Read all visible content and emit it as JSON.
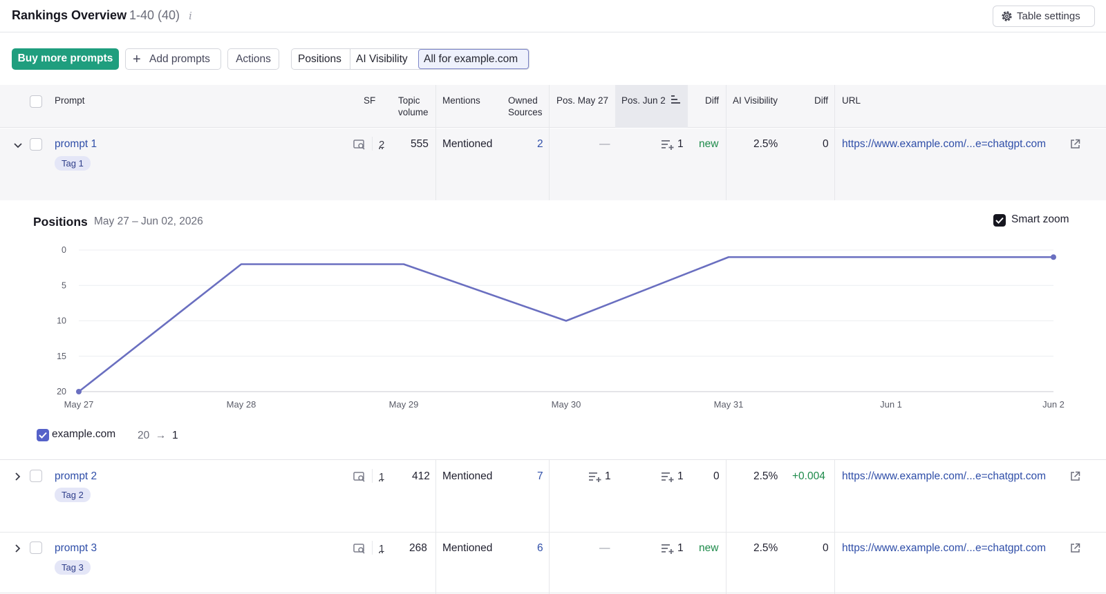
{
  "header": {
    "title": "Rankings Overview",
    "count": "1-40 (40)",
    "info_icon": "info-icon",
    "table_settings_label": "Table settings",
    "table_settings_icon": "gear-icon"
  },
  "toolbar": {
    "buy_label": "Buy more prompts",
    "add_label": "Add prompts",
    "actions_label": "Actions",
    "views": [
      "Positions",
      "AI Visibility",
      "All for example.com"
    ],
    "active_view": "All for example.com"
  },
  "table": {
    "columns": {
      "prompt": "Prompt",
      "sf": "SF",
      "topic_volume": [
        "Topic",
        "volume"
      ],
      "mentions": "Mentions",
      "owned_sources": [
        "Owned",
        "Sources"
      ],
      "pos_may27": "Pos. May 27",
      "pos_jun2": "Pos. Jun 2",
      "diff": "Diff",
      "ai_visibility": "AI Visibility",
      "diff2": "Diff",
      "url": "URL"
    },
    "sorted_column": "Pos. Jun 2",
    "rows": [
      {
        "prompt": "prompt 1",
        "tag": "Tag 1",
        "expanded": true,
        "sf": "2",
        "topic_volume": "555",
        "mentions": "Mentioned",
        "owned_sources": "2",
        "pos_may27": "—",
        "pos_jun2": "1",
        "diff": "new",
        "ai_visibility": "2.5%",
        "diff2": "0",
        "url": "https://www.example.com/...e=chatgpt.com"
      },
      {
        "prompt": "prompt 2",
        "tag": "Tag 2",
        "expanded": false,
        "sf": "1",
        "topic_volume": "412",
        "mentions": "Mentioned",
        "owned_sources": "7",
        "pos_may27": "1",
        "pos_jun2": "1",
        "diff": "0",
        "ai_visibility": "2.5%",
        "diff2": "+0.004",
        "url": "https://www.example.com/...e=chatgpt.com"
      },
      {
        "prompt": "prompt 3",
        "tag": "Tag 3",
        "expanded": false,
        "sf": "1",
        "topic_volume": "268",
        "mentions": "Mentioned",
        "owned_sources": "6",
        "pos_may27": "—",
        "pos_jun2": "1",
        "diff": "new",
        "ai_visibility": "2.5%",
        "diff2": "0",
        "url": "https://www.example.com/...e=chatgpt.com"
      }
    ]
  },
  "chart_panel": {
    "title": "Positions",
    "range": "May 27 – Jun 02, 2026",
    "smart_zoom_label": "Smart zoom",
    "smart_zoom_checked": true,
    "legend_name": "example.com",
    "legend_from": "20",
    "legend_to": "1"
  },
  "chart_data": {
    "type": "line",
    "title": "Positions",
    "categories": [
      "May 27",
      "May 28",
      "May 29",
      "May 30",
      "May 31",
      "Jun 1",
      "Jun 2"
    ],
    "series": [
      {
        "name": "example.com",
        "values": [
          20,
          2,
          2,
          10,
          1,
          1,
          1
        ],
        "color": "#6a6fc0"
      }
    ],
    "ylim": [
      0,
      20
    ],
    "y_reversed": true,
    "yticks": [
      "0",
      "5",
      "10",
      "15",
      "20"
    ],
    "grid": true,
    "xlabel": "",
    "ylabel": ""
  },
  "colors": {
    "accent_green": "#1f9e7e",
    "link_blue": "#2f4ea8",
    "positive_green": "#1d8a4a",
    "series_line": "#6a6fc0"
  }
}
